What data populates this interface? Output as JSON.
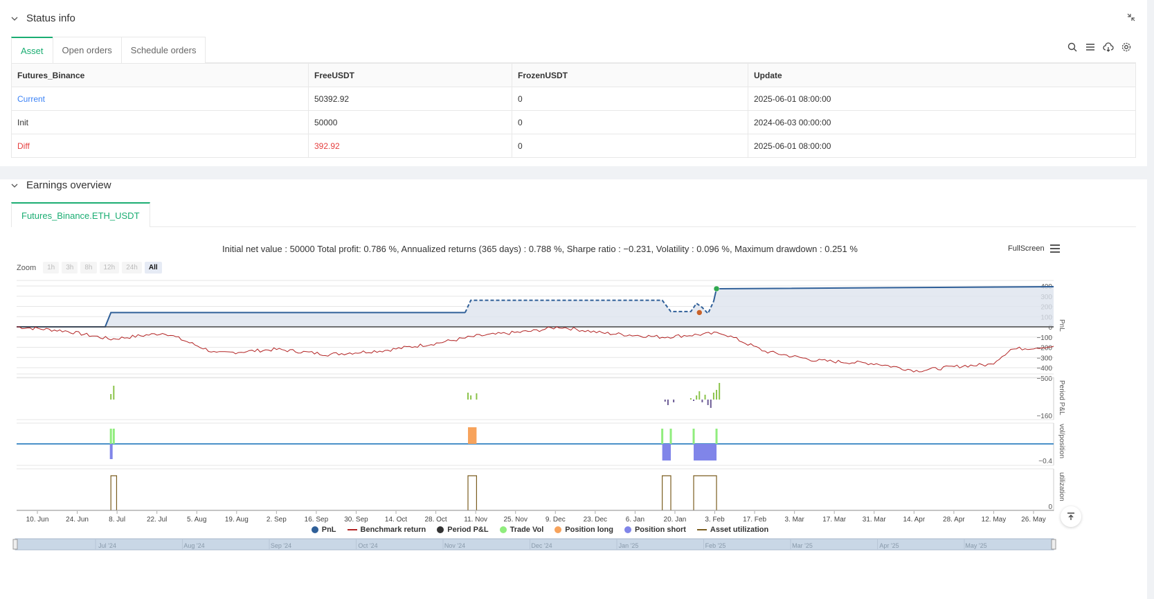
{
  "status": {
    "title": "Status info",
    "tabs": [
      "Asset",
      "Open orders",
      "Schedule orders"
    ],
    "columns": [
      "Futures_Binance",
      "FreeUSDT",
      "FrozenUSDT",
      "Update"
    ],
    "rows": [
      {
        "name": "Current",
        "free": "50392.92",
        "frozen": "0",
        "update": "2025-06-01 08:00:00"
      },
      {
        "name": "Init",
        "free": "50000",
        "frozen": "0",
        "update": "2024-06-03 00:00:00"
      },
      {
        "name": "Diff",
        "free": "392.92",
        "frozen": "0",
        "update": "2025-06-01 08:00:00"
      }
    ]
  },
  "earnings": {
    "title": "Earnings overview",
    "tab": "Futures_Binance.ETH_USDT",
    "summary": "Initial net value : 50000 Total profit: 0.786 %, Annualized returns (365 days) : 0.788 %, Sharpe ratio : −0.231, Volatility : 0.096 %, Maximum drawdown : 0.251 %",
    "fullscreen": "FullScreen",
    "zoom_label": "Zoom",
    "zoom_options": [
      "1h",
      "3h",
      "8h",
      "12h",
      "24h",
      "All"
    ],
    "zoom_selected": "All"
  },
  "chart_data": {
    "type": "line",
    "x_ticks": [
      "10. Jun",
      "24. Jun",
      "8. Jul",
      "22. Jul",
      "5. Aug",
      "19. Aug",
      "2. Sep",
      "16. Sep",
      "30. Sep",
      "14. Oct",
      "28. Oct",
      "11. Nov",
      "25. Nov",
      "9. Dec",
      "23. Dec",
      "6. Jan",
      "20. Jan",
      "3. Feb",
      "17. Feb",
      "3. Mar",
      "17. Mar",
      "31. Mar",
      "14. Apr",
      "28. Apr",
      "12. May",
      "26. May"
    ],
    "navigator_ticks": [
      "Jul '24",
      "Aug '24",
      "Sep '24",
      "Oct '24",
      "Nov '24",
      "Dec '24",
      "Jan '25",
      "Feb '25",
      "Mar '25",
      "Apr '25",
      "May '25"
    ],
    "pnl_axis": {
      "label": "PnL",
      "ticks": [
        400,
        300,
        200,
        100,
        0,
        -100,
        -200,
        -300,
        -400,
        -500
      ]
    },
    "period_axis": {
      "label": "Period P&L",
      "ticks": [
        -160
      ]
    },
    "vol_axis": {
      "label": "vol/position",
      "ticks": [
        -0.4
      ]
    },
    "util_axis": {
      "label": "utilization",
      "ticks": [
        0
      ]
    },
    "series": [
      {
        "name": "PnL",
        "color": "#2f5f98",
        "points": [
          [
            "2024-06-03",
            0
          ],
          [
            "2024-07-04",
            0
          ],
          [
            "2024-07-06",
            140
          ],
          [
            "2024-11-07",
            140
          ],
          [
            "2024-11-09",
            260
          ],
          [
            "2025-01-15",
            260
          ],
          [
            "2025-01-18",
            150
          ],
          [
            "2025-01-25",
            150
          ],
          [
            "2025-01-27",
            230
          ],
          [
            "2025-01-29",
            190
          ],
          [
            "2025-01-31",
            130
          ],
          [
            "2025-02-02",
            250
          ],
          [
            "2025-02-03",
            373
          ],
          [
            "2025-06-01",
            393
          ]
        ]
      },
      {
        "name": "Benchmark return",
        "color": "#b22222",
        "points": [
          [
            "2024-06-03",
            0
          ],
          [
            "2024-06-20",
            -40
          ],
          [
            "2024-07-06",
            -120
          ],
          [
            "2024-07-25",
            -60
          ],
          [
            "2024-08-12",
            -260
          ],
          [
            "2024-09-02",
            -220
          ],
          [
            "2024-09-20",
            -270
          ],
          [
            "2024-10-10",
            -230
          ],
          [
            "2024-10-28",
            -160
          ],
          [
            "2024-11-11",
            -90
          ],
          [
            "2024-12-01",
            -40
          ],
          [
            "2024-12-10",
            0
          ],
          [
            "2024-12-25",
            -60
          ],
          [
            "2025-01-15",
            -100
          ],
          [
            "2025-02-05",
            -60
          ],
          [
            "2025-02-20",
            -240
          ],
          [
            "2025-03-10",
            -330
          ],
          [
            "2025-03-31",
            -360
          ],
          [
            "2025-04-14",
            -430
          ],
          [
            "2025-05-01",
            -380
          ],
          [
            "2025-05-10",
            -370
          ],
          [
            "2025-05-17",
            -220
          ],
          [
            "2025-06-01",
            -190
          ]
        ]
      },
      {
        "name": "Period P&L",
        "color": "#333333"
      },
      {
        "name": "Trade Vol",
        "color": "#90ed7d"
      },
      {
        "name": "Position long",
        "color": "#f7a35c"
      },
      {
        "name": "Position short",
        "color": "#8085e9"
      },
      {
        "name": "Asset utilization",
        "color": "#7a5c1e"
      }
    ],
    "markers": [
      {
        "date": "2025-02-03",
        "value": 373,
        "color": "#2fa84f"
      },
      {
        "date": "2025-01-28",
        "value": 140,
        "color": "#c7622b"
      }
    ]
  }
}
